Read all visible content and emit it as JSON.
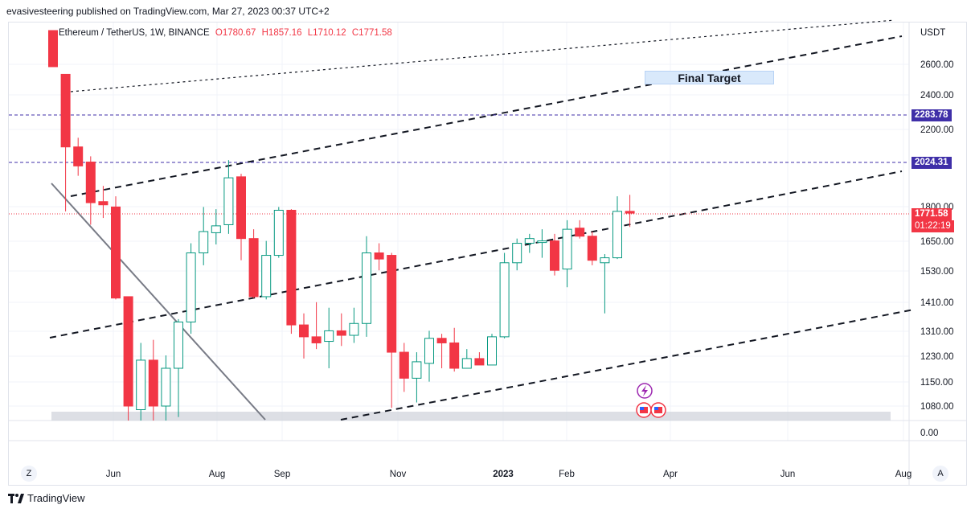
{
  "publisher_line": "evasivesteering published on TradingView.com, Mar 27, 2023 00:37 UTC+2",
  "symbol": {
    "title": "Ethereum / TetherUS, 1W, BINANCE",
    "open": "O1780.67",
    "high": "H1857.16",
    "low": "L1710.12",
    "close": "C1771.58"
  },
  "axis": {
    "currency": "USDT",
    "price_ticks": [
      "2600.00",
      "2400.00",
      "2200.00",
      "1800.00",
      "1650.00",
      "1530.00",
      "1410.00",
      "1310.00",
      "1230.00",
      "1150.00",
      "1080.00",
      "0.00"
    ],
    "time_ticks": [
      "Jun",
      "Aug",
      "Sep",
      "Nov",
      "2023",
      "Feb",
      "Apr",
      "Jun",
      "Aug"
    ]
  },
  "tags": {
    "level_high": "2283.78",
    "level_low": "2024.31",
    "last_price": "1771.58",
    "countdown": "01:22:19"
  },
  "annotation": {
    "final_target": "Final Target"
  },
  "buttons": {
    "scale_left": "Z",
    "scale_right": "A"
  },
  "logo_text": "TradingView",
  "colors": {
    "up": "#089981",
    "down": "#f23645",
    "level": "#3f2fa8",
    "last": "#f23645"
  },
  "chart_data": {
    "type": "candlestick",
    "title": "Ethereum / TetherUS, 1W, BINANCE",
    "ylabel": "USDT",
    "scale": "log",
    "candles": [
      {
        "o": 3000,
        "h": 3050,
        "l": 2580,
        "c": 2580
      },
      {
        "o": 2530,
        "h": 2530,
        "l": 1780,
        "c": 2100
      },
      {
        "o": 2100,
        "h": 2150,
        "l": 1950,
        "c": 2000
      },
      {
        "o": 2020,
        "h": 2050,
        "l": 1720,
        "c": 1820
      },
      {
        "o": 1825,
        "h": 1900,
        "l": 1750,
        "c": 1810
      },
      {
        "o": 1800,
        "h": 1850,
        "l": 1420,
        "c": 1425
      },
      {
        "o": 1430,
        "h": 1430,
        "l": 880,
        "c": 1080
      },
      {
        "o": 1070,
        "h": 1270,
        "l": 1000,
        "c": 1215
      },
      {
        "o": 1215,
        "h": 1280,
        "l": 1030,
        "c": 1080
      },
      {
        "o": 1080,
        "h": 1230,
        "l": 1000,
        "c": 1190
      },
      {
        "o": 1190,
        "h": 1350,
        "l": 1050,
        "c": 1340
      },
      {
        "o": 1340,
        "h": 1640,
        "l": 1300,
        "c": 1600
      },
      {
        "o": 1600,
        "h": 1800,
        "l": 1550,
        "c": 1690
      },
      {
        "o": 1685,
        "h": 1790,
        "l": 1635,
        "c": 1715
      },
      {
        "o": 1720,
        "h": 2030,
        "l": 1680,
        "c": 1940
      },
      {
        "o": 1945,
        "h": 1960,
        "l": 1570,
        "c": 1660
      },
      {
        "o": 1660,
        "h": 1700,
        "l": 1425,
        "c": 1430
      },
      {
        "o": 1430,
        "h": 1650,
        "l": 1420,
        "c": 1590
      },
      {
        "o": 1590,
        "h": 1800,
        "l": 1580,
        "c": 1785
      },
      {
        "o": 1785,
        "h": 1790,
        "l": 1300,
        "c": 1330
      },
      {
        "o": 1330,
        "h": 1370,
        "l": 1220,
        "c": 1290
      },
      {
        "o": 1290,
        "h": 1410,
        "l": 1250,
        "c": 1270
      },
      {
        "o": 1275,
        "h": 1390,
        "l": 1190,
        "c": 1310
      },
      {
        "o": 1310,
        "h": 1370,
        "l": 1260,
        "c": 1295
      },
      {
        "o": 1295,
        "h": 1390,
        "l": 1270,
        "c": 1335
      },
      {
        "o": 1335,
        "h": 1670,
        "l": 1290,
        "c": 1600
      },
      {
        "o": 1600,
        "h": 1640,
        "l": 1530,
        "c": 1575
      },
      {
        "o": 1590,
        "h": 1600,
        "l": 1075,
        "c": 1240
      },
      {
        "o": 1240,
        "h": 1270,
        "l": 1120,
        "c": 1160
      },
      {
        "o": 1160,
        "h": 1240,
        "l": 1090,
        "c": 1210
      },
      {
        "o": 1205,
        "h": 1310,
        "l": 1150,
        "c": 1285
      },
      {
        "o": 1285,
        "h": 1300,
        "l": 1190,
        "c": 1270
      },
      {
        "o": 1270,
        "h": 1320,
        "l": 1180,
        "c": 1190
      },
      {
        "o": 1190,
        "h": 1250,
        "l": 1190,
        "c": 1220
      },
      {
        "o": 1220,
        "h": 1240,
        "l": 1210,
        "c": 1200
      },
      {
        "o": 1200,
        "h": 1300,
        "l": 1200,
        "c": 1290
      },
      {
        "o": 1290,
        "h": 1600,
        "l": 1285,
        "c": 1560
      },
      {
        "o": 1560,
        "h": 1660,
        "l": 1530,
        "c": 1640
      },
      {
        "o": 1640,
        "h": 1680,
        "l": 1600,
        "c": 1660
      },
      {
        "o": 1650,
        "h": 1700,
        "l": 1580,
        "c": 1650
      },
      {
        "o": 1650,
        "h": 1680,
        "l": 1510,
        "c": 1530
      },
      {
        "o": 1535,
        "h": 1740,
        "l": 1465,
        "c": 1700
      },
      {
        "o": 1705,
        "h": 1740,
        "l": 1660,
        "c": 1670
      },
      {
        "o": 1670,
        "h": 1690,
        "l": 1550,
        "c": 1570
      },
      {
        "o": 1560,
        "h": 1595,
        "l": 1370,
        "c": 1580
      },
      {
        "o": 1580,
        "h": 1850,
        "l": 1575,
        "c": 1780
      },
      {
        "o": 1780,
        "h": 1857,
        "l": 1710,
        "c": 1772
      }
    ],
    "horizontal_levels": [
      2283.78,
      2024.31
    ],
    "last_price": 1771.58
  }
}
